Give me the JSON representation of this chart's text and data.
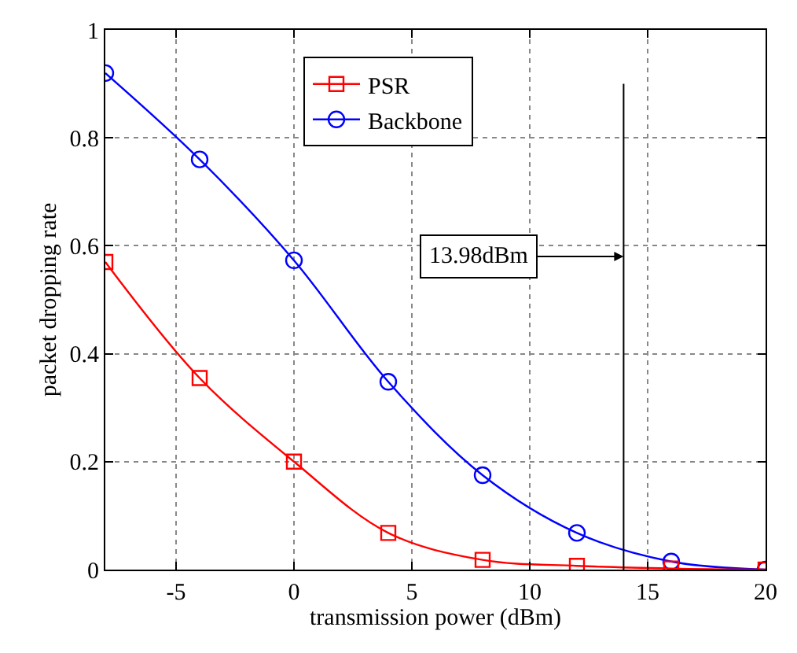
{
  "chart_data": {
    "type": "line",
    "xlabel": "transmission power (dBm)",
    "ylabel": "packet dropping rate",
    "x": [
      -8,
      -4,
      0,
      4,
      8,
      12,
      16,
      20
    ],
    "series": [
      {
        "name": "PSR",
        "color": "#ff0000",
        "marker": "square",
        "values": [
          0.57,
          0.355,
          0.2,
          0.068,
          0.018,
          0.007,
          0.002,
          0.0
        ]
      },
      {
        "name": "Backbone",
        "color": "#0000ff",
        "marker": "circle",
        "values": [
          0.92,
          0.76,
          0.573,
          0.348,
          0.175,
          0.068,
          0.015,
          0.0
        ]
      }
    ],
    "xlim": [
      -8,
      20
    ],
    "xticks": [
      -5,
      0,
      5,
      10,
      15,
      20
    ],
    "ylim": [
      0,
      1
    ],
    "yticks": [
      0,
      0.2,
      0.4,
      0.6,
      0.8,
      1
    ],
    "ref_lines": [
      {
        "axis": "x",
        "value": 13.98,
        "label": "13.98dBm",
        "color": "#000000"
      }
    ],
    "grid": true,
    "legend": "top left"
  }
}
